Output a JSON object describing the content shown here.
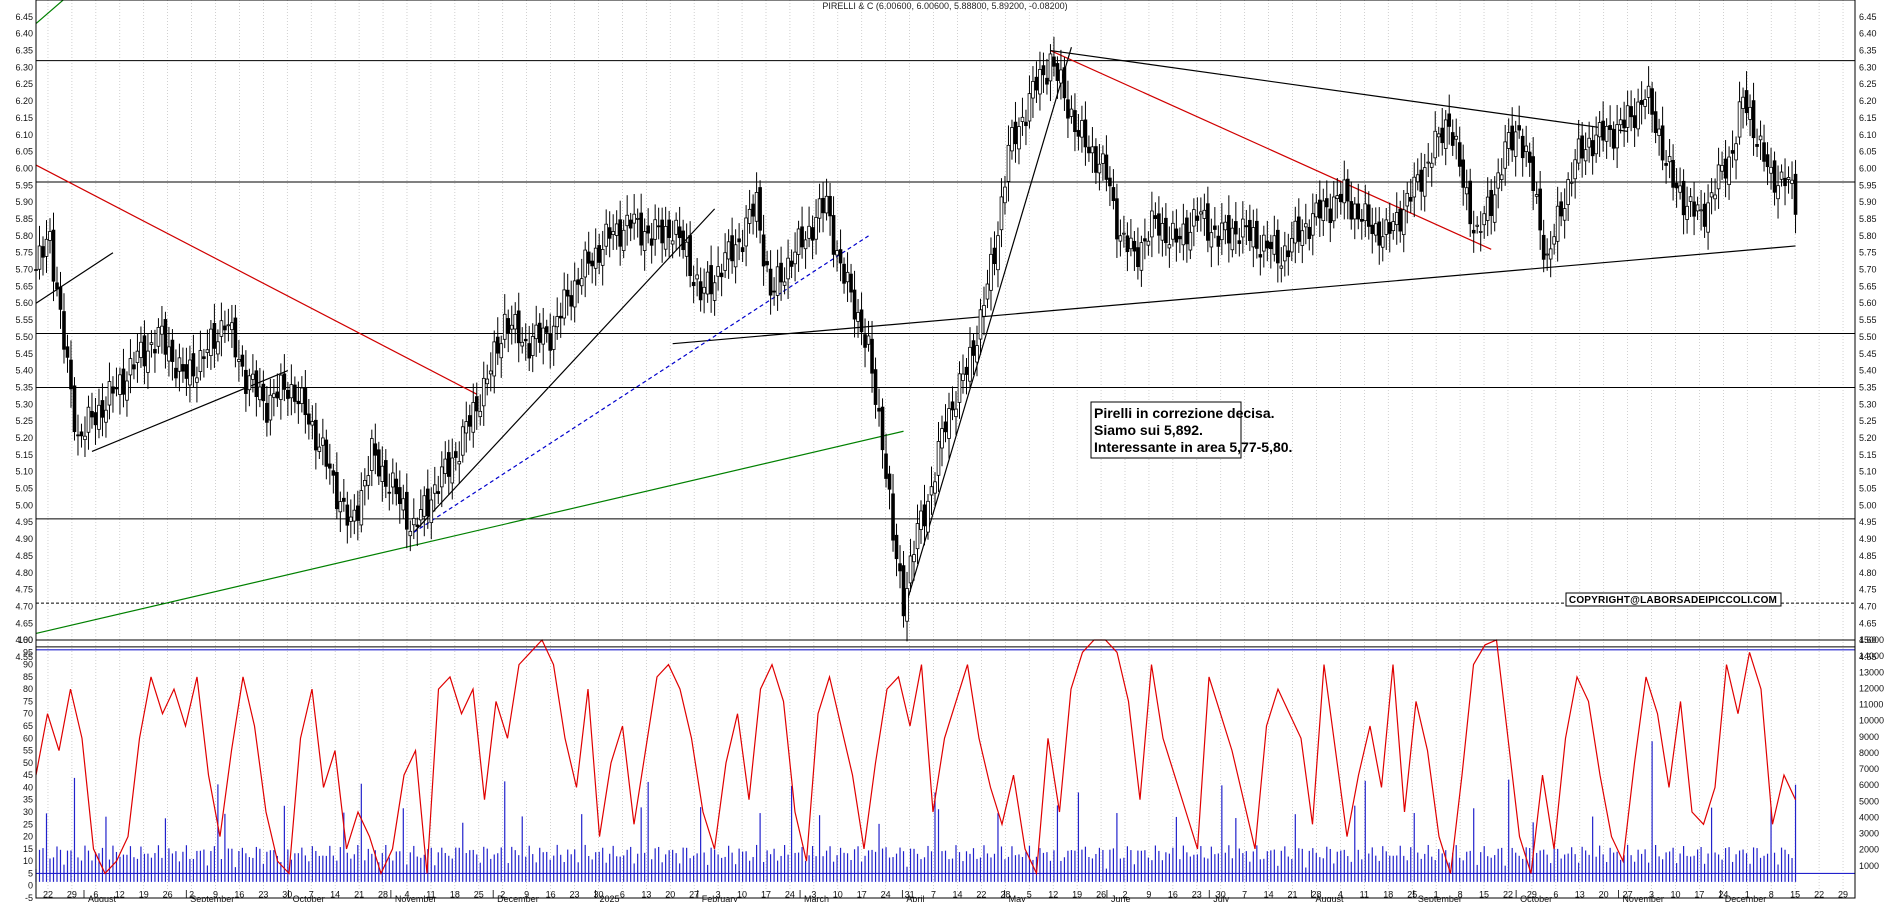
{
  "chart_data": [
    {
      "type": "candlestick",
      "title": "PIRELLI & C (6.00600, 6.00600, 5.88800, 5.89200, -0.08200)",
      "ylim": [
        4.55,
        6.5
      ],
      "y_ticks": [
        "6.45",
        "6.40",
        "6.35",
        "6.30",
        "6.25",
        "6.20",
        "6.15",
        "6.10",
        "6.05",
        "6.00",
        "5.95",
        "5.90",
        "5.85",
        "5.80",
        "5.75",
        "5.70",
        "5.65",
        "5.60",
        "5.55",
        "5.50",
        "5.45",
        "5.40",
        "5.35",
        "5.30",
        "5.25",
        "5.20",
        "5.15",
        "5.10",
        "5.05",
        "5.00",
        "4.95",
        "4.90",
        "4.85",
        "4.80",
        "4.75",
        "4.70",
        "4.65",
        "4.60",
        "4.55"
      ],
      "x_days": [
        "22",
        "29",
        "6",
        "12",
        "19",
        "26",
        "2",
        "9",
        "16",
        "23",
        "30",
        "7",
        "14",
        "21",
        "28",
        "4",
        "11",
        "18",
        "25",
        "2",
        "9",
        "16",
        "23",
        "30",
        "6",
        "13",
        "20",
        "27",
        "3",
        "10",
        "17",
        "24",
        "3",
        "10",
        "17",
        "24",
        "31",
        "7",
        "14",
        "22",
        "28",
        "5",
        "12",
        "19",
        "26",
        "2",
        "9",
        "16",
        "23",
        "30",
        "7",
        "14",
        "21",
        "28",
        "4",
        "11",
        "18",
        "25",
        "1",
        "8",
        "15",
        "22",
        "29",
        "6",
        "13",
        "20",
        "27",
        "3",
        "10",
        "17",
        "24",
        "1",
        "8",
        "15",
        "22",
        "29"
      ],
      "x_months": [
        "August",
        "September",
        "October",
        "November",
        "December",
        "2025",
        "February",
        "March",
        "April",
        "May",
        "June",
        "July",
        "August",
        "September",
        "October",
        "November",
        "December"
      ],
      "grid": true,
      "close_points": [
        [
          0,
          5.7
        ],
        [
          4,
          5.8
        ],
        [
          9,
          5.4
        ],
        [
          12,
          5.2
        ],
        [
          18,
          5.28
        ],
        [
          24,
          5.36
        ],
        [
          30,
          5.45
        ],
        [
          36,
          5.5
        ],
        [
          42,
          5.38
        ],
        [
          48,
          5.44
        ],
        [
          54,
          5.55
        ],
        [
          60,
          5.38
        ],
        [
          66,
          5.3
        ],
        [
          72,
          5.36
        ],
        [
          78,
          5.26
        ],
        [
          84,
          5.1
        ],
        [
          90,
          4.93
        ],
        [
          96,
          5.15
        ],
        [
          102,
          5.05
        ],
        [
          108,
          4.93
        ],
        [
          114,
          5.05
        ],
        [
          120,
          5.15
        ],
        [
          126,
          5.3
        ],
        [
          130,
          5.4
        ],
        [
          134,
          5.55
        ],
        [
          140,
          5.48
        ],
        [
          144,
          5.5
        ],
        [
          148,
          5.52
        ],
        [
          152,
          5.62
        ],
        [
          158,
          5.72
        ],
        [
          164,
          5.8
        ],
        [
          170,
          5.84
        ],
        [
          176,
          5.8
        ],
        [
          182,
          5.82
        ],
        [
          186,
          5.75
        ],
        [
          190,
          5.62
        ],
        [
          194,
          5.68
        ],
        [
          198,
          5.74
        ],
        [
          202,
          5.8
        ],
        [
          206,
          5.9
        ],
        [
          210,
          5.62
        ],
        [
          214,
          5.7
        ],
        [
          220,
          5.8
        ],
        [
          226,
          5.9
        ],
        [
          230,
          5.7
        ],
        [
          234,
          5.6
        ],
        [
          238,
          5.45
        ],
        [
          242,
          5.2
        ],
        [
          245,
          4.9
        ],
        [
          248,
          4.72
        ],
        [
          252,
          4.92
        ],
        [
          256,
          5.05
        ],
        [
          260,
          5.25
        ],
        [
          266,
          5.4
        ],
        [
          270,
          5.55
        ],
        [
          274,
          5.75
        ],
        [
          278,
          6.05
        ],
        [
          282,
          6.15
        ],
        [
          286,
          6.25
        ],
        [
          290,
          6.32
        ],
        [
          294,
          6.22
        ],
        [
          298,
          6.1
        ],
        [
          302,
          6.05
        ],
        [
          306,
          5.98
        ],
        [
          310,
          5.8
        ],
        [
          314,
          5.74
        ],
        [
          320,
          5.84
        ],
        [
          326,
          5.78
        ],
        [
          332,
          5.86
        ],
        [
          338,
          5.8
        ],
        [
          344,
          5.82
        ],
        [
          350,
          5.78
        ],
        [
          356,
          5.74
        ],
        [
          362,
          5.82
        ],
        [
          368,
          5.88
        ],
        [
          374,
          5.92
        ],
        [
          380,
          5.84
        ],
        [
          386,
          5.8
        ],
        [
          392,
          5.9
        ],
        [
          398,
          6.02
        ],
        [
          404,
          6.15
        ],
        [
          408,
          5.95
        ],
        [
          412,
          5.8
        ],
        [
          416,
          5.9
        ],
        [
          420,
          6.05
        ],
        [
          424,
          6.12
        ],
        [
          428,
          5.95
        ],
        [
          432,
          5.72
        ],
        [
          436,
          5.88
        ],
        [
          440,
          6.02
        ],
        [
          444,
          6.08
        ],
        [
          448,
          6.1
        ],
        [
          452,
          6.12
        ],
        [
          456,
          6.15
        ],
        [
          460,
          6.22
        ],
        [
          464,
          6.1
        ],
        [
          468,
          5.95
        ],
        [
          472,
          5.9
        ],
        [
          476,
          5.85
        ],
        [
          480,
          5.95
        ],
        [
          484,
          6.02
        ],
        [
          488,
          6.2
        ],
        [
          492,
          6.1
        ],
        [
          496,
          5.96
        ],
        [
          500,
          5.98
        ],
        [
          503,
          5.892
        ]
      ],
      "trendlines": [
        {
          "color": "#d00000",
          "from": [
            0,
            6.01
          ],
          "to": [
            126,
            5.33
          ]
        },
        {
          "color": "#d00000",
          "from": [
            290,
            6.35
          ],
          "to": [
            416,
            5.76
          ]
        },
        {
          "color": "#000000",
          "from": [
            0,
            5.6
          ],
          "to": [
            22,
            5.75
          ]
        },
        {
          "color": "#000000",
          "from": [
            16,
            5.16
          ],
          "to": [
            72,
            5.4
          ]
        },
        {
          "color": "#000000",
          "from": [
            108,
            4.92
          ],
          "to": [
            194,
            5.88
          ]
        },
        {
          "color": "#000000",
          "from": [
            182,
            5.48
          ],
          "to": [
            503,
            5.77
          ]
        },
        {
          "color": "#000000",
          "from": [
            248,
            4.68
          ],
          "to": [
            296,
            6.36
          ]
        },
        {
          "color": "#000000",
          "from": [
            290,
            6.35
          ],
          "to": [
            455,
            6.11
          ]
        },
        {
          "color": "#0000cc",
          "dashed": true,
          "from": [
            108,
            4.92
          ],
          "to": [
            238,
            5.8
          ]
        },
        {
          "color": "#008000",
          "from": [
            0,
            4.62
          ],
          "to": [
            248,
            5.22
          ]
        }
      ],
      "horizontal_levels": [
        6.32,
        5.96,
        5.51,
        5.35,
        4.96,
        4.71,
        4.58
      ],
      "annotation": [
        "Pirelli in correzione decisa.",
        "Siamo sui 5,892.",
        "Interessante in area 5,77-5,80."
      ],
      "copyright": "COPYRIGHT@LABORSADEIPICCOLI.COM"
    },
    {
      "type": "line",
      "series": [
        {
          "values": [
            45,
            70,
            55,
            80,
            60,
            15,
            5,
            10,
            20,
            60,
            85,
            70,
            80,
            65,
            85,
            45,
            20,
            55,
            85,
            65,
            30,
            10,
            5,
            60,
            80,
            40,
            55,
            15,
            30,
            20,
            5,
            15,
            45,
            55,
            5,
            80,
            85,
            70,
            80,
            35,
            75,
            60,
            90,
            95,
            100,
            90,
            60,
            40,
            80,
            20,
            50,
            65,
            25,
            55,
            85,
            90,
            80,
            60,
            30,
            15,
            50,
            70,
            35,
            80,
            90,
            75,
            30,
            10,
            70,
            85,
            65,
            45,
            15,
            50,
            80,
            85,
            65,
            90,
            30,
            60,
            75,
            90,
            60,
            40,
            25,
            45,
            15,
            5,
            60,
            30,
            80,
            95,
            100,
            100,
            95,
            75,
            35,
            90,
            60,
            45,
            30,
            15,
            85,
            70,
            55,
            35,
            15,
            65,
            80,
            70,
            60,
            25,
            90,
            55,
            20,
            45,
            65,
            40,
            90,
            30,
            75,
            55,
            20,
            5,
            45,
            90,
            98,
            100,
            60,
            20,
            5,
            45,
            15,
            60,
            85,
            75,
            45,
            20,
            10,
            50,
            85,
            70,
            40,
            75,
            30,
            25,
            40,
            90,
            70,
            95,
            80,
            25,
            45,
            35
          ]
        }
      ],
      "ylim": [
        -5,
        100
      ],
      "y_ticks": [
        "100",
        "95",
        "90",
        "85",
        "80",
        "75",
        "70",
        "65",
        "60",
        "55",
        "50",
        "45",
        "40",
        "35",
        "30",
        "25",
        "20",
        "15",
        "10",
        "5",
        "0",
        "-5"
      ],
      "levels": [
        96,
        5
      ]
    },
    {
      "type": "bar",
      "ylim": [
        -1000,
        15000
      ],
      "y_ticks": [
        "15000",
        "14000",
        "13000",
        "12000",
        "11000",
        "10000",
        "9000",
        "8000",
        "7000",
        "6000",
        "5000",
        "4000",
        "3000",
        "2000",
        "1000"
      ]
    }
  ]
}
